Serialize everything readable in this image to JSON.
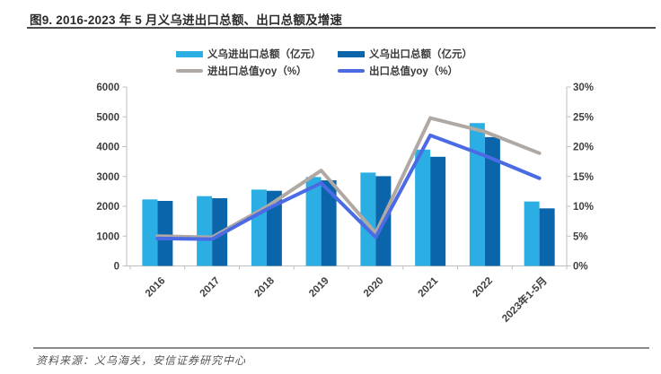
{
  "figure": {
    "title": "图9. 2016-2023 年 5 月义乌进出口总额、出口总额及增速",
    "source": "资料来源：义乌海关，安信证券研究中心"
  },
  "colors": {
    "bar_total": "#2BAEE4",
    "bar_export": "#0A65AB",
    "line_total_yoy": "#B0A9A3",
    "line_export_yoy": "#4A6BE3",
    "axis": "#BFBFBF",
    "tick_text": "#404040"
  },
  "chart_data": {
    "type": "bar+line combo",
    "legend_position": "top",
    "grid": false,
    "categories": [
      "2016",
      "2017",
      "2018",
      "2019",
      "2020",
      "2021",
      "2022",
      "2023年1-5月"
    ],
    "series": [
      {
        "name": "义乌进出口总额（亿元）",
        "type": "bar",
        "axis": "left",
        "color": "#2BAEE4",
        "values": [
          2230,
          2340,
          2560,
          2980,
          3130,
          3900,
          4790,
          2160
        ]
      },
      {
        "name": "义乌出口总额（亿元）",
        "type": "bar",
        "axis": "left",
        "color": "#0A65AB",
        "values": [
          2180,
          2270,
          2520,
          2870,
          3010,
          3660,
          4320,
          1930
        ]
      },
      {
        "name": "进出口总值yoy（%）",
        "type": "line",
        "axis": "right",
        "color": "#B0A9A3",
        "values": [
          5.0,
          4.8,
          9.9,
          16.0,
          5.5,
          24.8,
          22.5,
          18.9
        ]
      },
      {
        "name": "出口总值yoy（%）",
        "type": "line",
        "axis": "right",
        "color": "#4A6BE3",
        "values": [
          4.6,
          4.5,
          9.5,
          13.9,
          4.8,
          21.9,
          18.5,
          14.7
        ]
      }
    ],
    "left_axis": {
      "label": "",
      "min": 0,
      "max": 6000,
      "step": 1000,
      "ticks": [
        "0",
        "1000",
        "2000",
        "3000",
        "4000",
        "5000",
        "6000"
      ]
    },
    "right_axis": {
      "label": "",
      "min": 0,
      "max": 30,
      "step": 5,
      "ticks": [
        "0%",
        "5%",
        "10%",
        "15%",
        "20%",
        "25%",
        "30%"
      ]
    }
  }
}
